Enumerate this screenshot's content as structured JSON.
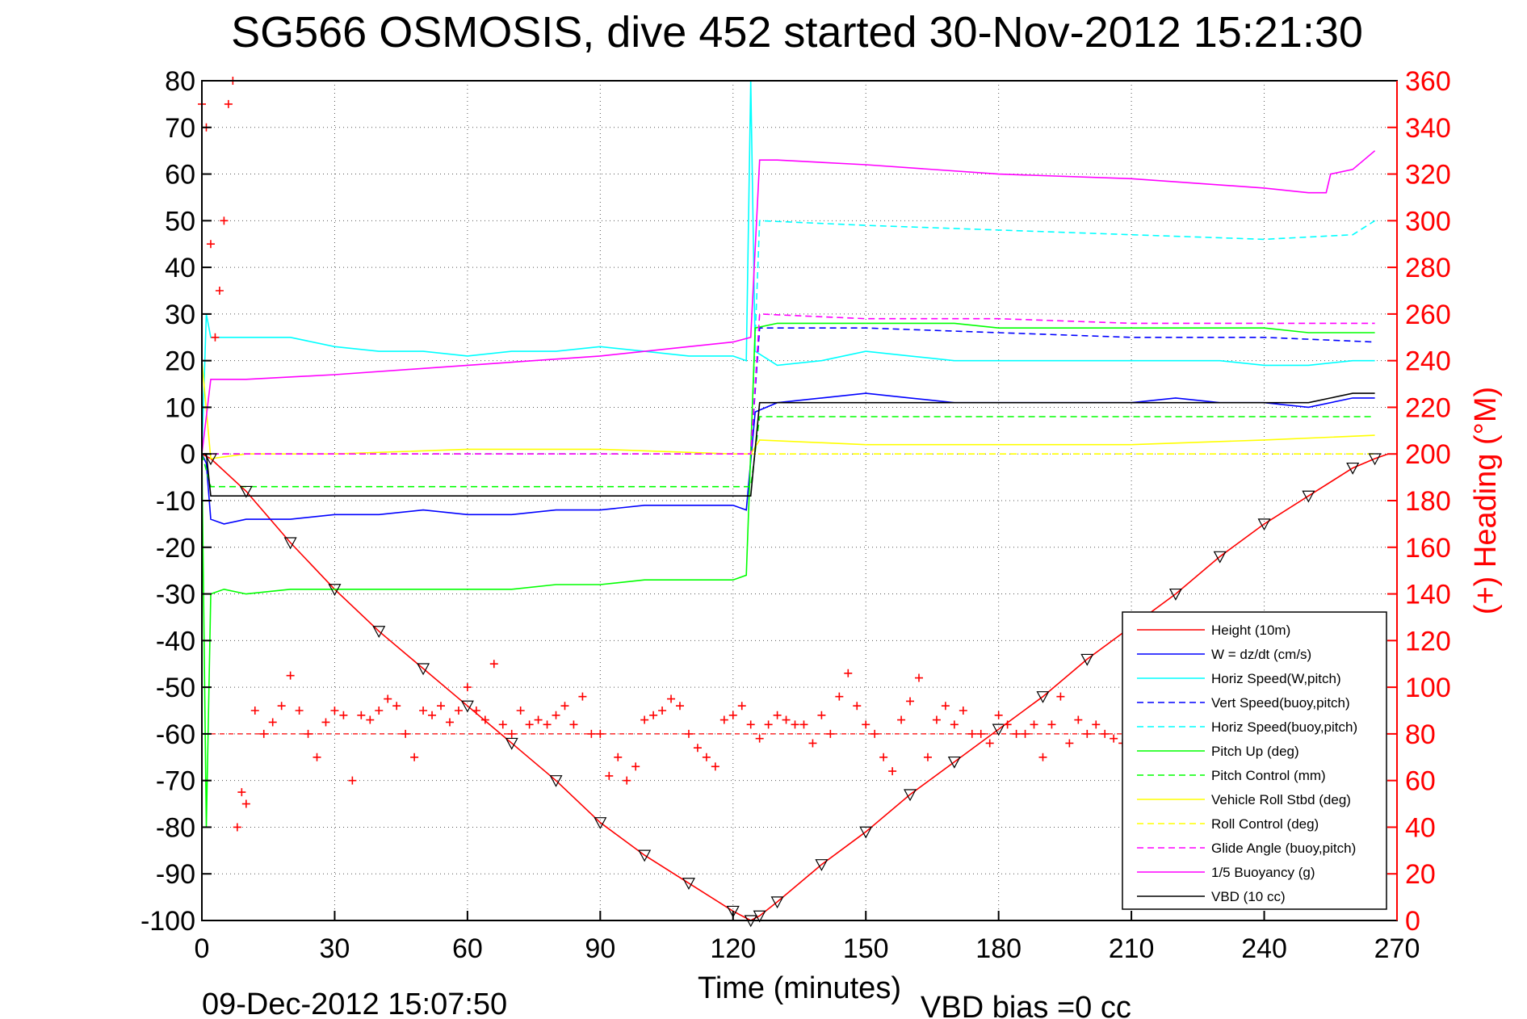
{
  "chart_data": {
    "type": "line",
    "title": "SG566 OSMOSIS, dive 452 started 30-Nov-2012 15:21:30",
    "xlabel": "Time (minutes)",
    "ylabel": "",
    "y2label": "(+) Heading (°M)",
    "xlim": [
      0,
      270
    ],
    "ylim": [
      -100,
      80
    ],
    "y2lim": [
      0,
      360
    ],
    "x_ticks": [
      "0",
      "30",
      "60",
      "90",
      "120",
      "150",
      "180",
      "210",
      "240",
      "270"
    ],
    "y_ticks": [
      "80",
      "70",
      "60",
      "50",
      "40",
      "30",
      "20",
      "10",
      "0",
      "-10",
      "-20",
      "-30",
      "-40",
      "-50",
      "-60",
      "-70",
      "-80",
      "-90",
      "-100"
    ],
    "y2_ticks": [
      "360",
      "340",
      "320",
      "300",
      "280",
      "260",
      "240",
      "220",
      "200",
      "180",
      "160",
      "140",
      "120",
      "100",
      "80",
      "60",
      "40",
      "20",
      "0"
    ],
    "grid": true,
    "legend_position": "bottom-right",
    "footer_left": "09-Dec-2012 15:07:50",
    "footer_right": "VBD bias =0 cc",
    "series": [
      {
        "name": "Height (10m)",
        "color": "#ff0000",
        "style": "solid",
        "x": [
          0,
          2,
          10,
          20,
          30,
          40,
          50,
          60,
          70,
          80,
          90,
          100,
          110,
          120,
          124,
          126,
          130,
          140,
          150,
          160,
          170,
          180,
          190,
          200,
          210,
          220,
          230,
          240,
          250,
          260,
          265,
          268
        ],
        "y": [
          0,
          -1,
          -8,
          -19,
          -29,
          -38,
          -46,
          -54,
          -62,
          -70,
          -79,
          -86,
          -92,
          -98,
          -100,
          -99,
          -96,
          -88,
          -81,
          -73,
          -66,
          -59,
          -52,
          -44,
          -37,
          -30,
          -22,
          -15,
          -9,
          -3,
          -1,
          0
        ]
      },
      {
        "name": "W = dz/dt (cm/s)",
        "color": "#0000ff",
        "style": "solid",
        "x": [
          0,
          1,
          2,
          5,
          10,
          20,
          30,
          40,
          50,
          60,
          70,
          80,
          90,
          100,
          110,
          120,
          123,
          125,
          130,
          140,
          150,
          160,
          170,
          180,
          190,
          200,
          210,
          220,
          230,
          240,
          250,
          260,
          265
        ],
        "y": [
          0,
          -2,
          -14,
          -15,
          -14,
          -14,
          -13,
          -13,
          -12,
          -13,
          -13,
          -12,
          -12,
          -11,
          -11,
          -11,
          -12,
          9,
          11,
          12,
          13,
          12,
          11,
          11,
          11,
          11,
          11,
          12,
          11,
          11,
          10,
          12,
          12
        ]
      },
      {
        "name": "Horiz Speed(W,pitch)",
        "color": "#00ffff",
        "style": "solid",
        "x": [
          0,
          1,
          2,
          5,
          10,
          20,
          30,
          40,
          50,
          60,
          70,
          80,
          90,
          100,
          110,
          120,
          123,
          124,
          125,
          130,
          140,
          150,
          160,
          170,
          180,
          190,
          200,
          210,
          220,
          230,
          240,
          250,
          260,
          265
        ],
        "y": [
          0,
          30,
          25,
          25,
          25,
          25,
          23,
          22,
          22,
          21,
          22,
          22,
          23,
          22,
          21,
          21,
          20,
          80,
          22,
          19,
          20,
          22,
          21,
          20,
          20,
          20,
          20,
          20,
          20,
          20,
          19,
          19,
          20,
          20
        ]
      },
      {
        "name": "Vert Speed(buoy,pitch)",
        "color": "#0000ff",
        "style": "dashed",
        "x": [
          0,
          2,
          30,
          60,
          90,
          120,
          124,
          126,
          150,
          180,
          210,
          240,
          265
        ],
        "y": [
          0,
          0,
          0,
          0,
          0,
          0,
          0,
          27,
          27,
          26,
          25,
          25,
          24
        ]
      },
      {
        "name": "Horiz Speed(buoy,pitch)",
        "color": "#00ffff",
        "style": "dashed",
        "x": [
          0,
          2,
          30,
          60,
          90,
          120,
          124,
          126,
          150,
          180,
          210,
          240,
          260,
          265
        ],
        "y": [
          0,
          0,
          0,
          0,
          0,
          0,
          0,
          50,
          49,
          48,
          47,
          46,
          47,
          50
        ]
      },
      {
        "name": "Pitch Up (deg)",
        "color": "#00ff00",
        "style": "solid",
        "x": [
          0,
          1,
          2,
          5,
          10,
          20,
          30,
          40,
          50,
          60,
          70,
          80,
          90,
          100,
          110,
          120,
          123,
          125,
          130,
          140,
          150,
          160,
          170,
          180,
          190,
          200,
          210,
          220,
          230,
          240,
          250,
          260,
          265
        ],
        "y": [
          0,
          -80,
          -30,
          -29,
          -30,
          -29,
          -29,
          -29,
          -29,
          -29,
          -29,
          -28,
          -28,
          -27,
          -27,
          -27,
          -26,
          27,
          28,
          28,
          28,
          28,
          28,
          27,
          27,
          27,
          27,
          27,
          27,
          27,
          26,
          26,
          26
        ]
      },
      {
        "name": "Pitch Control (mm)",
        "color": "#00ff00",
        "style": "dashed",
        "x": [
          0,
          2,
          30,
          60,
          90,
          120,
          124,
          126,
          150,
          180,
          210,
          240,
          265
        ],
        "y": [
          0,
          -7,
          -7,
          -7,
          -7,
          -7,
          -7,
          8,
          8,
          8,
          8,
          8,
          8
        ]
      },
      {
        "name": "Vehicle Roll Stbd (deg)",
        "color": "#ffff00",
        "style": "solid",
        "x": [
          0,
          2,
          10,
          30,
          60,
          90,
          120,
          124,
          126,
          150,
          180,
          210,
          240,
          265
        ],
        "y": [
          20,
          -1,
          0,
          0,
          1,
          1,
          0,
          0,
          3,
          2,
          2,
          2,
          3,
          4
        ]
      },
      {
        "name": "Roll Control (deg)",
        "color": "#ffff00",
        "style": "dashed",
        "x": [
          0,
          2,
          30,
          60,
          90,
          120,
          124,
          126,
          150,
          180,
          210,
          240,
          265
        ],
        "y": [
          0,
          0,
          0,
          0,
          0,
          0,
          0,
          0,
          0,
          0,
          0,
          0,
          0
        ]
      },
      {
        "name": "Glide Angle (buoy,pitch)",
        "color": "#ff00ff",
        "style": "dashed",
        "x": [
          0,
          2,
          30,
          60,
          90,
          120,
          124,
          126,
          150,
          180,
          210,
          240,
          265
        ],
        "y": [
          0,
          0,
          0,
          0,
          0,
          0,
          0,
          30,
          29,
          29,
          28,
          28,
          28
        ]
      },
      {
        "name": "1/5 Buoyancy (g)",
        "color": "#ff00ff",
        "style": "solid",
        "x": [
          0,
          2,
          10,
          30,
          60,
          90,
          110,
          120,
          124,
          126,
          130,
          150,
          180,
          210,
          240,
          250,
          254,
          255,
          260,
          265
        ],
        "y": [
          0,
          16,
          16,
          17,
          19,
          21,
          23,
          24,
          25,
          63,
          63,
          62,
          60,
          59,
          57,
          56,
          56,
          60,
          61,
          65
        ]
      },
      {
        "name": "VBD (10 cc)",
        "color": "#000000",
        "style": "solid",
        "x": [
          0,
          1,
          2,
          30,
          60,
          90,
          120,
          123,
          124,
          126,
          150,
          180,
          210,
          240,
          250,
          255,
          260,
          265
        ],
        "y": [
          0,
          0,
          -9,
          -9,
          -9,
          -9,
          -9,
          -9,
          -9,
          11,
          11,
          11,
          11,
          11,
          11,
          12,
          13,
          13
        ]
      }
    ],
    "heading": {
      "name": "(+) Heading (°M)",
      "color": "#ff0000",
      "reference": 80,
      "x": [
        0,
        1,
        2,
        3,
        4,
        5,
        6,
        7,
        8,
        9,
        10,
        12,
        14,
        16,
        18,
        20,
        22,
        24,
        26,
        28,
        30,
        32,
        34,
        36,
        38,
        40,
        42,
        44,
        46,
        48,
        50,
        52,
        54,
        56,
        58,
        60,
        62,
        64,
        66,
        68,
        70,
        72,
        74,
        76,
        78,
        80,
        82,
        84,
        86,
        88,
        90,
        92,
        94,
        96,
        98,
        100,
        102,
        104,
        106,
        108,
        110,
        112,
        114,
        116,
        118,
        120,
        122,
        124,
        126,
        128,
        130,
        132,
        134,
        136,
        138,
        140,
        142,
        144,
        146,
        148,
        150,
        152,
        154,
        156,
        158,
        160,
        162,
        164,
        166,
        168,
        170,
        172,
        174,
        176,
        178,
        180,
        182,
        184,
        186,
        188,
        190,
        192,
        194,
        196,
        198,
        200,
        202,
        204,
        206,
        208,
        210
      ],
      "y": [
        350,
        340,
        290,
        250,
        270,
        300,
        350,
        360,
        40,
        55,
        50,
        90,
        80,
        85,
        92,
        105,
        90,
        80,
        70,
        85,
        90,
        88,
        60,
        88,
        86,
        90,
        95,
        92,
        80,
        70,
        90,
        88,
        92,
        85,
        90,
        100,
        90,
        86,
        110,
        84,
        80,
        90,
        84,
        86,
        84,
        88,
        92,
        84,
        96,
        80,
        80,
        62,
        70,
        60,
        66,
        86,
        88,
        90,
        95,
        92,
        80,
        74,
        70,
        66,
        86,
        88,
        92,
        84,
        78,
        84,
        88,
        86,
        84,
        84,
        76,
        88,
        80,
        96,
        106,
        92,
        84,
        80,
        70,
        64,
        86,
        94,
        104,
        70,
        86,
        92,
        84,
        90,
        80,
        80,
        76,
        88,
        84,
        80,
        80,
        84,
        70,
        84,
        96,
        76,
        86,
        80,
        84,
        80,
        78,
        76,
        80
      ]
    }
  }
}
